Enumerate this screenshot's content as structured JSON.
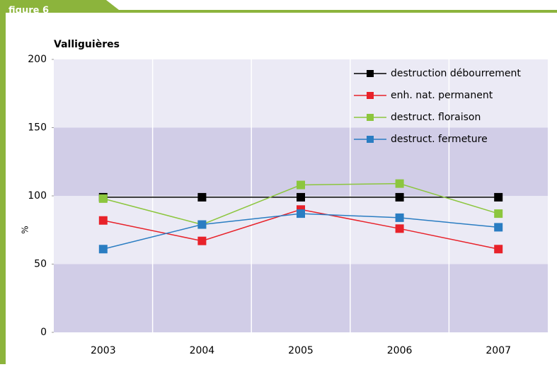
{
  "header": {
    "label": "figure 6"
  },
  "chart_data": {
    "type": "line",
    "title": "Valliguières",
    "y_label": "%",
    "categories": [
      "2003",
      "2004",
      "2005",
      "2006",
      "2007"
    ],
    "series": [
      {
        "name": "destruction débourrement",
        "color": "#000000",
        "values": [
          99,
          99,
          99,
          99,
          99
        ]
      },
      {
        "name": "enh. nat. permanent",
        "color": "#e8222a",
        "values": [
          82,
          67,
          90,
          76,
          61
        ]
      },
      {
        "name": "destruct. floraison",
        "color": "#8cc63e",
        "values": [
          98,
          79,
          108,
          109,
          87
        ]
      },
      {
        "name": "destruct. fermeture",
        "color": "#2a7dc2",
        "values": [
          61,
          79,
          87,
          84,
          77
        ]
      }
    ],
    "ylim": [
      0,
      200
    ],
    "yticks": [
      0,
      50,
      100,
      150,
      200
    ],
    "legend": "upper right"
  }
}
